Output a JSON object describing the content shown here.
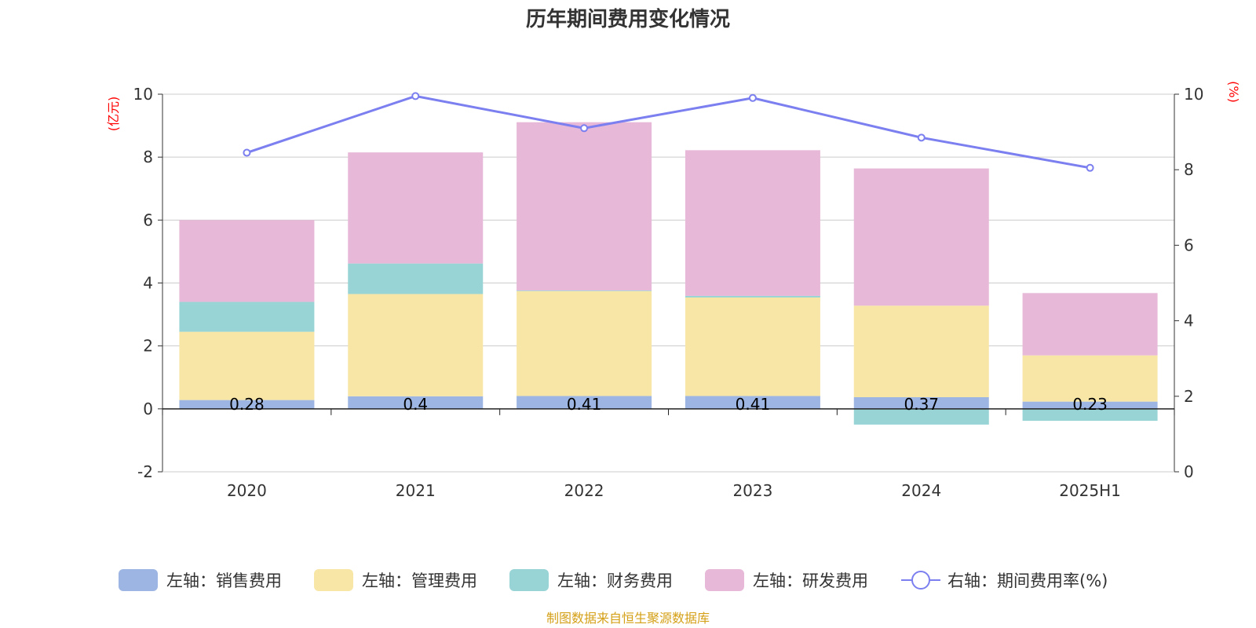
{
  "chart_data": {
    "type": "bar",
    "title": "历年期间费用变化情况",
    "categories": [
      "2020",
      "2021",
      "2022",
      "2023",
      "2024",
      "2025H1"
    ],
    "left_axis": {
      "unit_label": "(亿元)",
      "ylim": [
        -2,
        10
      ],
      "ticks": [
        "-2",
        "0",
        "2",
        "4",
        "6",
        "8",
        "10"
      ]
    },
    "right_axis": {
      "unit_label": "(%)",
      "ylim": [
        0,
        10
      ],
      "ticks": [
        "0",
        "2",
        "4",
        "6",
        "8",
        "10"
      ]
    },
    "series": [
      {
        "name": "左轴：销售费用",
        "kind": "bar",
        "axis": "left",
        "color": "#9db5e2",
        "values": [
          0.28,
          0.4,
          0.41,
          0.41,
          0.37,
          0.23
        ],
        "labels": [
          "0.28",
          "0.4",
          "0.41",
          "0.41",
          "0.37",
          "0.23"
        ]
      },
      {
        "name": "左轴：管理费用",
        "kind": "bar",
        "axis": "left",
        "color": "#f7e6a6",
        "values": [
          2.17,
          3.25,
          3.33,
          3.13,
          2.91,
          1.47
        ]
      },
      {
        "name": "左轴：财务费用",
        "kind": "bar",
        "axis": "left",
        "color": "#98d4d6",
        "values": [
          0.95,
          0.97,
          0.02,
          0.05,
          -0.5,
          -0.38
        ]
      },
      {
        "name": "左轴：研发费用",
        "kind": "bar",
        "axis": "left",
        "color": "#e7b8d8",
        "values": [
          2.6,
          3.53,
          5.35,
          4.63,
          4.36,
          1.98
        ]
      },
      {
        "name": "右轴：期间费用率(%)",
        "kind": "line",
        "axis": "right",
        "color": "#7b7fef",
        "values": [
          8.45,
          9.95,
          9.1,
          9.9,
          8.85,
          8.05
        ]
      }
    ],
    "grid": true,
    "legend_position": "bottom"
  },
  "footer": {
    "source": "制图数据来自恒生聚源数据库"
  }
}
